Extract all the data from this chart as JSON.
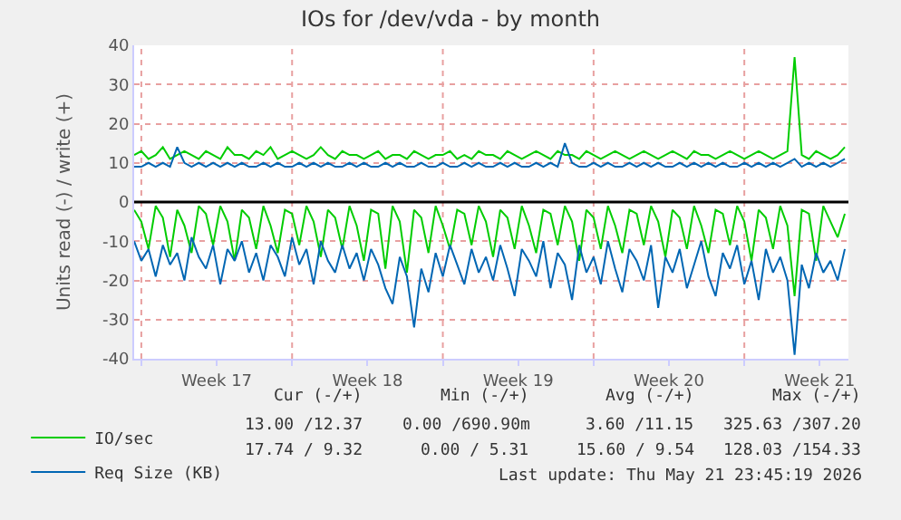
{
  "chart_data": {
    "type": "line",
    "title": "IOs for /dev/vda - by month",
    "ylabel": "Units read (-) / write (+)",
    "x": [
      "2026-04-19T16:00",
      "2026-04-20T00:00",
      "2026-04-20T08:00",
      "2026-04-20T16:00",
      "2026-04-21T00:00",
      "2026-04-21T08:00",
      "2026-04-21T16:00",
      "2026-04-22T00:00",
      "2026-04-22T08:00",
      "2026-04-22T16:00",
      "2026-04-23T00:00",
      "2026-04-23T08:00",
      "2026-04-23T16:00",
      "2026-04-24T00:00",
      "2026-04-24T08:00",
      "2026-04-24T16:00",
      "2026-04-25T00:00",
      "2026-04-25T08:00",
      "2026-04-25T16:00",
      "2026-04-26T00:00",
      "2026-04-26T08:00",
      "2026-04-26T16:00",
      "2026-04-27T00:00",
      "2026-04-27T08:00",
      "2026-04-27T16:00",
      "2026-04-28T00:00",
      "2026-04-28T08:00",
      "2026-04-28T16:00",
      "2026-04-29T00:00",
      "2026-04-29T08:00",
      "2026-04-29T16:00",
      "2026-04-30T00:00",
      "2026-04-30T08:00",
      "2026-04-30T16:00",
      "2026-05-01T00:00",
      "2026-05-01T08:00",
      "2026-05-01T16:00",
      "2026-05-02T00:00",
      "2026-05-02T08:00",
      "2026-05-02T16:00",
      "2026-05-03T00:00",
      "2026-05-03T08:00",
      "2026-05-03T16:00",
      "2026-05-04T00:00",
      "2026-05-04T08:00",
      "2026-05-04T16:00",
      "2026-05-05T00:00",
      "2026-05-05T08:00",
      "2026-05-05T16:00",
      "2026-05-06T00:00",
      "2026-05-06T08:00",
      "2026-05-06T16:00",
      "2026-05-07T00:00",
      "2026-05-07T08:00",
      "2026-05-07T16:00",
      "2026-05-08T00:00",
      "2026-05-08T08:00",
      "2026-05-08T16:00",
      "2026-05-09T00:00",
      "2026-05-09T08:00",
      "2026-05-09T16:00",
      "2026-05-10T00:00",
      "2026-05-10T08:00",
      "2026-05-10T16:00",
      "2026-05-11T00:00",
      "2026-05-11T08:00",
      "2026-05-11T16:00",
      "2026-05-12T00:00",
      "2026-05-12T08:00",
      "2026-05-12T16:00",
      "2026-05-13T00:00",
      "2026-05-13T08:00",
      "2026-05-13T16:00",
      "2026-05-14T00:00",
      "2026-05-14T08:00",
      "2026-05-14T16:00",
      "2026-05-15T00:00",
      "2026-05-15T08:00",
      "2026-05-15T16:00",
      "2026-05-16T00:00",
      "2026-05-16T08:00",
      "2026-05-16T16:00",
      "2026-05-17T00:00",
      "2026-05-17T08:00",
      "2026-05-17T16:00",
      "2026-05-18T00:00",
      "2026-05-18T08:00",
      "2026-05-18T16:00",
      "2026-05-19T00:00",
      "2026-05-19T08:00",
      "2026-05-19T16:00",
      "2026-05-20T00:00",
      "2026-05-20T08:00",
      "2026-05-20T16:00",
      "2026-05-21T00:00",
      "2026-05-21T08:00",
      "2026-05-21T16:00",
      "2026-05-22T00:00",
      "2026-05-22T08:00",
      "2026-05-22T16:00"
    ],
    "xlim": [
      "2026-04-19T16:00",
      "2026-05-22T20:00"
    ],
    "xticks": [
      {
        "value": "2026-04-20T00:00",
        "label": null
      },
      {
        "value": "2026-04-23T12:00",
        "label": "Week 17"
      },
      {
        "value": "2026-04-27T00:00",
        "label": null
      },
      {
        "value": "2026-04-30T12:00",
        "label": "Week 18"
      },
      {
        "value": "2026-05-04T00:00",
        "label": null
      },
      {
        "value": "2026-05-07T12:00",
        "label": "Week 19"
      },
      {
        "value": "2026-05-11T00:00",
        "label": null
      },
      {
        "value": "2026-05-14T12:00",
        "label": "Week 20"
      },
      {
        "value": "2026-05-18T00:00",
        "label": null
      },
      {
        "value": "2026-05-21T12:00",
        "label": "Week 21"
      }
    ],
    "ylim": [
      -40,
      40
    ],
    "yticks": [
      -40,
      -30,
      -20,
      -10,
      0,
      10,
      20,
      30,
      40
    ],
    "grid": true,
    "legend": "bottom left",
    "ref_lines": [
      {
        "axis": "y",
        "value": 0,
        "color": "#000000"
      }
    ],
    "series": [
      {
        "color": "#00cc00",
        "values": [
          -2,
          -5,
          -12,
          -1,
          -4,
          -14,
          -2,
          -6,
          -13,
          -1,
          -3,
          -11,
          -1,
          -5,
          -15,
          -2,
          -4,
          -12,
          -1,
          -6,
          -13,
          -2,
          -3,
          -11,
          -1,
          -5,
          -14,
          -2,
          -4,
          -12,
          -1,
          -6,
          -15,
          -2,
          -3,
          -17,
          -1,
          -5,
          -18,
          -2,
          -4,
          -13,
          -1,
          -6,
          -12,
          -2,
          -3,
          -11,
          -1,
          -5,
          -14,
          -2,
          -4,
          -12,
          -1,
          -6,
          -13,
          -2,
          -3,
          -11,
          -1,
          -5,
          -15,
          -2,
          -4,
          -12,
          -1,
          -6,
          -13,
          -2,
          -3,
          -11,
          -1,
          -5,
          -14,
          -2,
          -4,
          -12,
          -1,
          -6,
          -13,
          -2,
          -3,
          -11,
          -1,
          -5,
          -15,
          -2,
          -4,
          -12,
          -1,
          -6,
          -24,
          -2,
          -3,
          -15,
          -1,
          -5,
          -9,
          -3
        ]
      },
      {
        "name": "IO/sec",
        "color": "#00cc00",
        "values": [
          12,
          13,
          11,
          12,
          14,
          11,
          12,
          13,
          12,
          11,
          13,
          12,
          11,
          14,
          12,
          12,
          11,
          13,
          12,
          14,
          11,
          12,
          13,
          12,
          11,
          12,
          14,
          12,
          11,
          13,
          12,
          12,
          11,
          12,
          13,
          11,
          12,
          12,
          11,
          13,
          12,
          11,
          12,
          12,
          13,
          11,
          12,
          11,
          13,
          12,
          12,
          11,
          13,
          12,
          11,
          12,
          13,
          12,
          11,
          13,
          12,
          12,
          11,
          13,
          12,
          11,
          12,
          13,
          12,
          11,
          12,
          13,
          12,
          11,
          12,
          13,
          12,
          11,
          13,
          12,
          12,
          11,
          12,
          13,
          12,
          11,
          12,
          13,
          12,
          11,
          12,
          13,
          37,
          12,
          11,
          13,
          12,
          11,
          12,
          14
        ]
      },
      {
        "color": "#0066b3",
        "values": [
          -10,
          -15,
          -12,
          -19,
          -11,
          -16,
          -13,
          -20,
          -9,
          -14,
          -17,
          -11,
          -21,
          -12,
          -15,
          -10,
          -18,
          -13,
          -20,
          -11,
          -14,
          -19,
          -9,
          -16,
          -12,
          -21,
          -10,
          -15,
          -18,
          -11,
          -17,
          -13,
          -20,
          -12,
          -16,
          -22,
          -26,
          -14,
          -19,
          -32,
          -17,
          -23,
          -13,
          -19,
          -11,
          -16,
          -21,
          -12,
          -18,
          -14,
          -20,
          -11,
          -17,
          -24,
          -12,
          -15,
          -19,
          -10,
          -22,
          -13,
          -16,
          -25,
          -11,
          -18,
          -14,
          -21,
          -10,
          -17,
          -23,
          -12,
          -15,
          -20,
          -11,
          -27,
          -14,
          -18,
          -12,
          -22,
          -16,
          -10,
          -19,
          -24,
          -13,
          -17,
          -11,
          -21,
          -15,
          -25,
          -12,
          -18,
          -14,
          -20,
          -39,
          -16,
          -22,
          -13,
          -18,
          -15,
          -20,
          -12
        ]
      },
      {
        "name": "Req Size (KB)",
        "color": "#0066b3",
        "values": [
          9,
          9,
          10,
          9,
          10,
          9,
          14,
          10,
          9,
          10,
          9,
          10,
          9,
          10,
          9,
          10,
          9,
          9,
          10,
          9,
          10,
          9,
          9,
          10,
          9,
          10,
          9,
          10,
          9,
          9,
          10,
          9,
          10,
          9,
          9,
          10,
          9,
          10,
          9,
          9,
          10,
          9,
          9,
          10,
          9,
          9,
          10,
          9,
          10,
          9,
          9,
          10,
          9,
          10,
          9,
          9,
          10,
          9,
          10,
          9,
          15,
          10,
          9,
          9,
          10,
          9,
          10,
          9,
          9,
          10,
          9,
          10,
          9,
          10,
          9,
          9,
          10,
          9,
          10,
          9,
          10,
          9,
          10,
          9,
          9,
          10,
          9,
          10,
          9,
          10,
          9,
          10,
          11,
          9,
          10,
          9,
          10,
          9,
          10,
          11
        ]
      }
    ],
    "annotations": [
      "Cur (-/+)",
      "Min (-/+)",
      "Avg (-/+)",
      "Max (-/+)",
      "13.00 /12.37",
      "0.00 /690.90m",
      "3.60 /11.15",
      "325.63 /307.20",
      "17.74 / 9.32",
      "0.00 / 5.31",
      "15.60 / 9.54",
      "128.03 /154.33",
      "Last update: Thu May 21 23:45:19 2026"
    ]
  }
}
